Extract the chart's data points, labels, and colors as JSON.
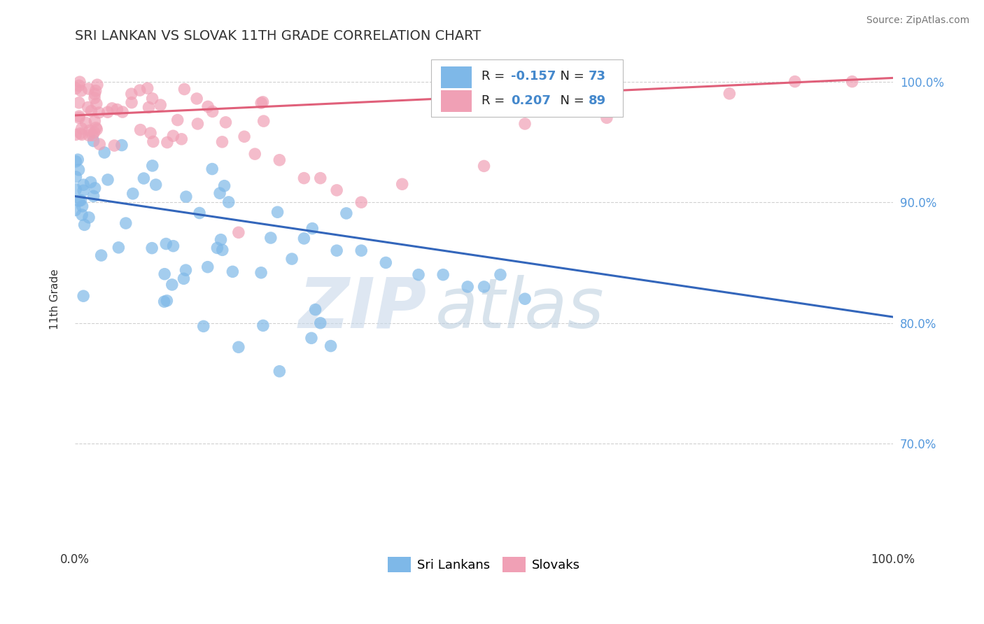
{
  "title": "SRI LANKAN VS SLOVAK 11TH GRADE CORRELATION CHART",
  "source": "Source: ZipAtlas.com",
  "ylabel": "11th Grade",
  "xlim": [
    0.0,
    1.0
  ],
  "ylim": [
    0.615,
    1.025
  ],
  "yticks": [
    0.7,
    0.8,
    0.9,
    1.0
  ],
  "ytick_labels": [
    "70.0%",
    "80.0%",
    "90.0%",
    "100.0%"
  ],
  "sri_lankan_color": "#7EB8E8",
  "slovak_color": "#F0A0B5",
  "sri_lankan_label": "Sri Lankans",
  "slovak_label": "Slovaks",
  "R_sri": -0.157,
  "N_sri": 73,
  "R_slo": 0.207,
  "N_slo": 89,
  "trend_sri_start": 0.905,
  "trend_sri_end": 0.805,
  "trend_slo_start": 0.972,
  "trend_slo_end": 1.003,
  "watermark_zip": "ZIP",
  "watermark_atlas": "atlas",
  "watermark_color": "#C5D8EC",
  "background_color": "#FFFFFF",
  "grid_color": "#CCCCCC",
  "tick_color": "#5599DD",
  "title_fontsize": 14,
  "legend_fontsize": 13,
  "axis_fontsize": 11,
  "tick_fontsize": 12,
  "source_fontsize": 10
}
